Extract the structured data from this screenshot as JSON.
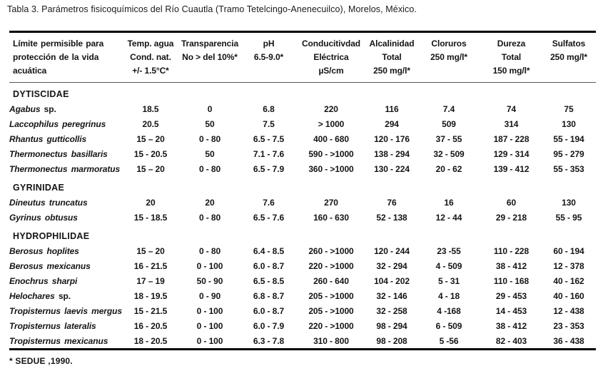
{
  "caption": "Tabla 3. Parámetros fisicoquímicos del Río Cuautla (Tramo Tetelcingo-Anenecuilco), Morelos, México.",
  "footnote": "* SEDUE ,1990.",
  "colors": {
    "ink": "#141414",
    "rule": "#000000",
    "paper": "#ffffff"
  },
  "columns": [
    {
      "id": "limite",
      "lines": [
        "Límite permisible para",
        "protección de la vida",
        "acuática"
      ]
    },
    {
      "id": "temperatura",
      "lines": [
        "Temp. agua",
        "Cond. nat.",
        "+/- 1.5°C*"
      ]
    },
    {
      "id": "transparencia",
      "lines": [
        "Transparencia",
        "No > del 10%*"
      ]
    },
    {
      "id": "ph",
      "lines": [
        "pH",
        "6.5-9.0*"
      ]
    },
    {
      "id": "conductividad",
      "lines": [
        "Conducitivdad",
        "Eléctrica",
        "µS/cm"
      ]
    },
    {
      "id": "alcalinidad",
      "lines": [
        "Alcalinidad",
        "Total",
        "250 mg/l*"
      ]
    },
    {
      "id": "cloruros",
      "lines": [
        "Cloruros",
        "250 mg/l*"
      ]
    },
    {
      "id": "dureza",
      "lines": [
        "Dureza",
        "Total",
        "150 mg/l*"
      ]
    },
    {
      "id": "sulfatos",
      "lines": [
        "Sulfatos",
        "250 mg/l*"
      ]
    }
  ],
  "sections": [
    {
      "family": "DYTISCIDAE",
      "rows": [
        {
          "species": "Agabus sp.",
          "values": [
            "18.5",
            "0",
            "6.8",
            "220",
            "116",
            "7.4",
            "74",
            "75"
          ]
        },
        {
          "species": "Laccophilus peregrinus",
          "values": [
            "20.5",
            "50",
            "7.5",
            "> 1000",
            "294",
            "509",
            "314",
            "130"
          ]
        },
        {
          "species": "Rhantus gutticollis",
          "values": [
            "15 – 20",
            "0 - 80",
            "6.5 - 7.5",
            "400 - 680",
            "120 - 176",
            "37 - 55",
            "187 - 228",
            "55 - 194"
          ]
        },
        {
          "species": "Thermonectus basillaris",
          "values": [
            "15 - 20.5",
            "50",
            "7.1 - 7.6",
            "590 - >1000",
            "138 - 294",
            "32 - 509",
            "129 - 314",
            "95 - 279"
          ]
        },
        {
          "species": "Thermonectus marmoratus",
          "values": [
            "15 – 20",
            "0 - 80",
            "6.5 - 7.9",
            "360 - >1000",
            "130 - 224",
            "20 - 62",
            "139 - 412",
            "55 - 353"
          ]
        }
      ]
    },
    {
      "family": "GYRINIDAE",
      "rows": [
        {
          "species": "Dineutus truncatus",
          "values": [
            "20",
            "20",
            "7.6",
            "270",
            "76",
            "16",
            "60",
            "130"
          ]
        },
        {
          "species": "Gyrinus obtusus",
          "values": [
            "15 - 18.5",
            "0 - 80",
            "6.5 - 7.6",
            "160 - 630",
            "52 - 138",
            "12 - 44",
            "29 - 218",
            "55 - 95"
          ]
        }
      ]
    },
    {
      "family": "HYDROPHILIDAE",
      "rows": [
        {
          "species": "Berosus hoplites",
          "values": [
            "15 – 20",
            "0 - 80",
            "6.4 - 8.5",
            "260 - >1000",
            "120 - 244",
            "23 -55",
            "110 - 228",
            "60 - 194"
          ]
        },
        {
          "species": "Berosus mexicanus",
          "values": [
            "16 - 21.5",
            "0 - 100",
            "6.0 - 8.7",
            "220 - >1000",
            "32 - 294",
            "4 - 509",
            "38 - 412",
            "12 - 378"
          ]
        },
        {
          "species": "Enochrus sharpi",
          "values": [
            "17 – 19",
            "50 - 90",
            "6.5 - 8.5",
            "260 - 640",
            "104 - 202",
            "5 - 31",
            "110 - 168",
            "40 - 162"
          ]
        },
        {
          "species": "Helochares sp.",
          "values": [
            "18 - 19.5",
            "0 - 90",
            "6.8 - 8.7",
            "205 - >1000",
            "32 - 146",
            "4 - 18",
            "29 - 453",
            "40 - 160"
          ]
        },
        {
          "species": "Tropisternus laevis mergus",
          "values": [
            "15 - 21.5",
            "0 - 100",
            "6.0 - 8.7",
            "205 - >1000",
            "32 - 258",
            "4 -168",
            "14 - 453",
            "12 - 438"
          ]
        },
        {
          "species": "Tropisternus lateralis",
          "values": [
            "16 - 20.5",
            "0 - 100",
            "6.0 - 7.9",
            "220 - >1000",
            "98 - 294",
            "6 - 509",
            "38 - 412",
            "23 - 353"
          ]
        },
        {
          "species": "Tropisternus mexicanus",
          "values": [
            "18 - 20.5",
            "0 - 100",
            "6.3 - 7.8",
            "310 - 800",
            "98 - 208",
            "5 -56",
            "82 - 403",
            "36 - 438"
          ]
        }
      ]
    }
  ]
}
